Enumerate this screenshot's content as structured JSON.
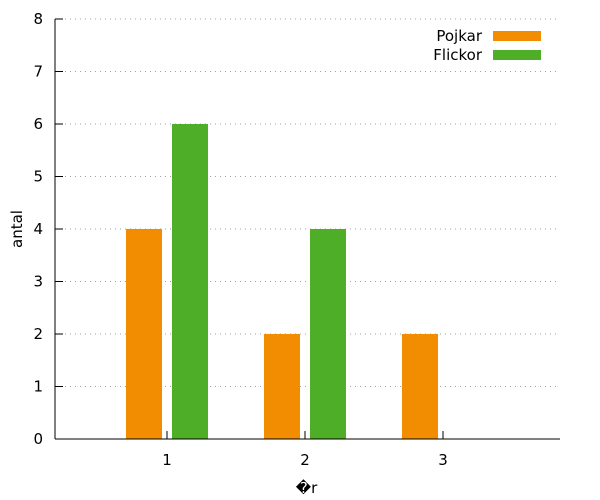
{
  "chart_data": {
    "type": "bar",
    "title": "",
    "xlabel": "�r",
    "ylabel": "antal",
    "categories": [
      "1",
      "2",
      "3"
    ],
    "series": [
      {
        "name": "Pojkar",
        "values": [
          4,
          2,
          2
        ],
        "color": "#f28c00"
      },
      {
        "name": "Flickor",
        "values": [
          6,
          4,
          0
        ],
        "color": "#4fae28"
      }
    ],
    "ylim": [
      0,
      8
    ],
    "yticks": [
      "0",
      "1",
      "2",
      "3",
      "4",
      "5",
      "6",
      "7",
      "8"
    ],
    "grid": "horizontal dotted",
    "legend_position": "top-right"
  }
}
